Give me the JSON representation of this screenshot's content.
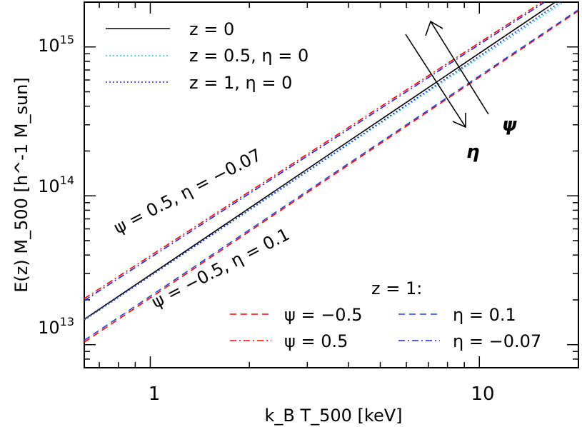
{
  "chart_data": {
    "type": "line",
    "title": "",
    "xlabel": "k_B T_500 [keV]",
    "ylabel": "E(z) M_500 [h^-1 M_sun]",
    "x_scale": "log",
    "y_scale": "log",
    "xlim": [
      0.63,
      20
    ],
    "ylim": [
      7000000000000.0,
      2000000000000000.0
    ],
    "x_major_ticks": [
      {
        "value": 1,
        "label": "1"
      },
      {
        "value": 10,
        "label": "10"
      }
    ],
    "y_major_ticks": [
      {
        "value": 10000000000000.0,
        "base": "10",
        "exp": "13"
      },
      {
        "value": 100000000000000.0,
        "base": "10",
        "exp": "14"
      },
      {
        "value": 1000000000000000.0,
        "base": "10",
        "exp": "15"
      }
    ],
    "series": [
      {
        "name": "z = 0",
        "color": "#000000",
        "dash": "solid",
        "x": [
          0.63,
          17.0
        ],
        "y": [
          14800000000000.0,
          2000000000000000.0
        ]
      },
      {
        "name": "z = 0.5, η = 0",
        "color": "#22cccc",
        "dash": "dotted",
        "x": [
          0.63,
          18.0
        ],
        "y": [
          14700000000000.0,
          2000000000000000.0
        ]
      },
      {
        "name": "z = 1, η = 0",
        "color": "#2222cc",
        "dash": "dotted",
        "x": [
          0.63,
          17.6
        ],
        "y": [
          14600000000000.0,
          2000000000000000.0
        ]
      },
      {
        "name": "ψ = −0.5",
        "color": "#ff0000",
        "dash": "dashed",
        "x": [
          0.63,
          20.0
        ],
        "y": [
          10400000000000.0,
          1750000000000000.0
        ]
      },
      {
        "name": "η = 0.1",
        "color": "#2244dd",
        "dash": "dashed",
        "x": [
          0.63,
          20.0
        ],
        "y": [
          10700000000000.0,
          1780000000000000.0
        ]
      },
      {
        "name": "ψ = 0.5",
        "color": "#ff0000",
        "dash": "dashdot",
        "x": [
          0.63,
          15.5
        ],
        "y": [
          20400000000000.0,
          2000000000000000.0
        ]
      },
      {
        "name": "η = −0.07",
        "color": "#2222cc",
        "dash": "dashdot",
        "x": [
          0.63,
          15.8
        ],
        "y": [
          19800000000000.0,
          2000000000000000.0
        ]
      }
    ],
    "legend_top": {
      "placement": "top-left",
      "entries": [
        {
          "label": "z = 0",
          "color": "#000000",
          "dash": "solid"
        },
        {
          "label": "z = 0.5, η = 0",
          "color": "#22cccc",
          "dash": "dotted"
        },
        {
          "label": "z = 1, η = 0",
          "color": "#2222cc",
          "dash": "dotted"
        }
      ]
    },
    "legend_bottom": {
      "placement": "bottom-right",
      "title": "z = 1:",
      "entries": [
        {
          "label": "ψ = −0.5",
          "color": "#ff0000",
          "dash": "dashed"
        },
        {
          "label": "η = 0.1",
          "color": "#2244dd",
          "dash": "dashed"
        },
        {
          "label": "ψ = 0.5",
          "color": "#ff0000",
          "dash": "dashdot"
        },
        {
          "label": "η = −0.07",
          "color": "#2222cc",
          "dash": "dashdot"
        }
      ]
    },
    "annotations": [
      {
        "text": "ψ = 0.5, η = −0.07"
      },
      {
        "text": "ψ = −0.5, η = 0.1"
      },
      {
        "text": "ψ"
      },
      {
        "text": "η"
      }
    ]
  }
}
